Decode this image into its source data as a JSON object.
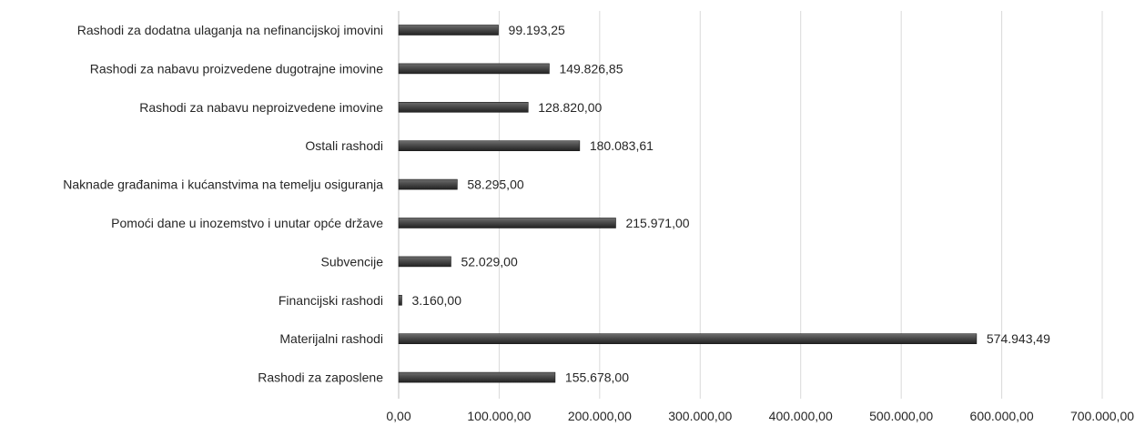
{
  "chart_data": {
    "type": "bar",
    "orientation": "horizontal",
    "title": "",
    "xlabel": "",
    "ylabel": "",
    "categories": [
      "Rashodi za dodatna ulaganja na nefinancijskoj imovini",
      "Rashodi za nabavu proizvedene dugotrajne imovine",
      "Rashodi za nabavu neproizvedene imovine",
      "Ostali rashodi",
      "Naknade građanima i kućanstvima na temelju osiguranja",
      "Pomoći dane u inozemstvo i unutar opće države",
      "Subvencije",
      "Financijski rashodi",
      "Materijalni rashodi",
      "Rashodi za zaposlene"
    ],
    "values": [
      99193.25,
      149826.85,
      128820.0,
      180083.61,
      58295.0,
      215971.0,
      52029.0,
      3160.0,
      574943.49,
      155678.0
    ],
    "data_labels": [
      "99.193,25",
      "149.826,85",
      "128.820,00",
      "180.083,61",
      "58.295,00",
      "215.971,00",
      "52.029,00",
      "3.160,00",
      "574.943,49",
      "155.678,00"
    ],
    "xlim": [
      0,
      700000
    ],
    "x_ticks": [
      0,
      100000,
      200000,
      300000,
      400000,
      500000,
      600000,
      700000
    ],
    "x_tick_labels": [
      "0,00",
      "100.000,00",
      "200.000,00",
      "300.000,00",
      "400.000,00",
      "500.000,00",
      "600.000,00",
      "700.000,00"
    ],
    "grid": true,
    "legend": "none",
    "bar_color": "#4a4a4a"
  }
}
